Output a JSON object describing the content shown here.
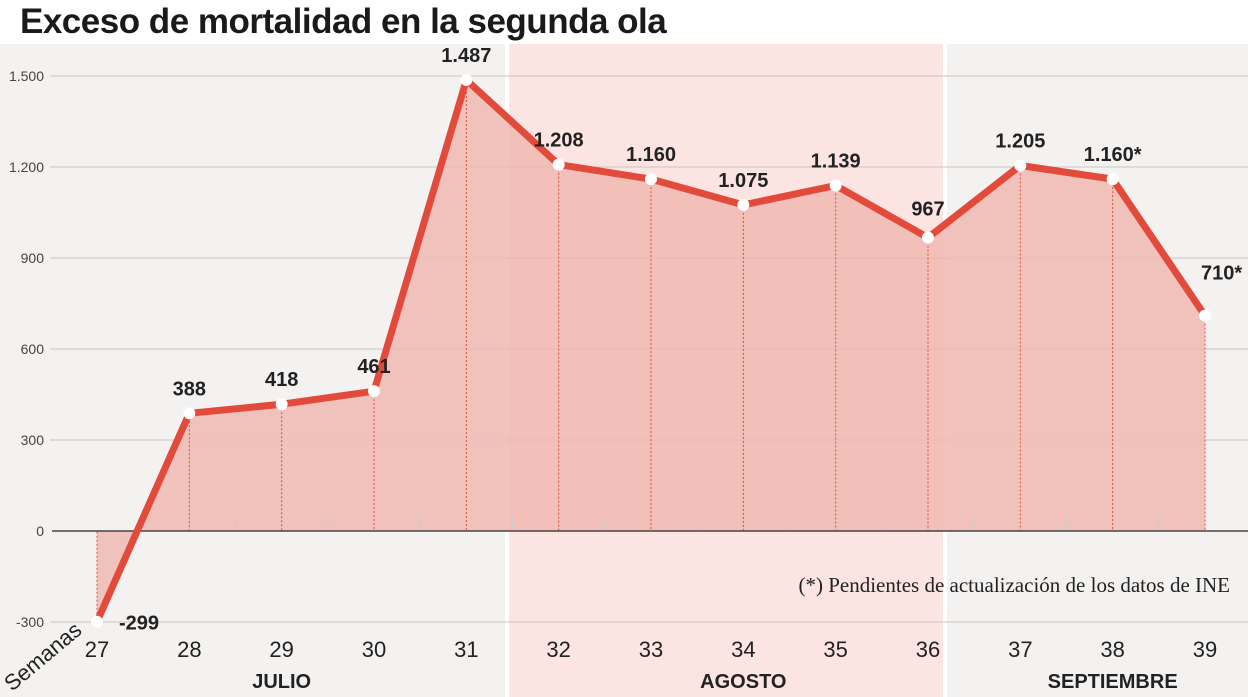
{
  "chart_data": {
    "type": "area",
    "title": "Exceso de mortalidad en la segunda ola",
    "xlabel": "Semanas",
    "categories": [
      "27",
      "28",
      "29",
      "30",
      "31",
      "32",
      "33",
      "34",
      "35",
      "36",
      "37",
      "38",
      "39"
    ],
    "values": [
      -299,
      388,
      418,
      461,
      1487,
      1208,
      1160,
      1075,
      1139,
      967,
      1205,
      1160,
      710
    ],
    "data_labels": [
      "-299",
      "388",
      "418",
      "461",
      "1.487",
      "1.208",
      "1.160",
      "1.075",
      "1.139",
      "967",
      "1.205",
      "1.160*",
      "710*"
    ],
    "yticks": [
      -300,
      0,
      300,
      600,
      900,
      1200,
      1500
    ],
    "ytick_labels": [
      "-300",
      "0",
      "300",
      "600",
      "900",
      "1.200",
      "1.500"
    ],
    "ylim": [
      -300,
      1500
    ],
    "grid": true,
    "months": [
      {
        "label": "JULIO",
        "weeks": [
          "27",
          "31"
        ]
      },
      {
        "label": "AGOSTO",
        "weeks": [
          "32",
          "36"
        ]
      },
      {
        "label": "SEPTIEMBRE",
        "weeks": [
          "37",
          "39"
        ]
      }
    ],
    "note": "(*) Pendientes de actualización de los datos de INE",
    "colors": {
      "line": "#e24a3b",
      "fill": "#f0b8b2",
      "background": "#f4f2f0",
      "highlight_band": "#fbe4e1"
    }
  }
}
